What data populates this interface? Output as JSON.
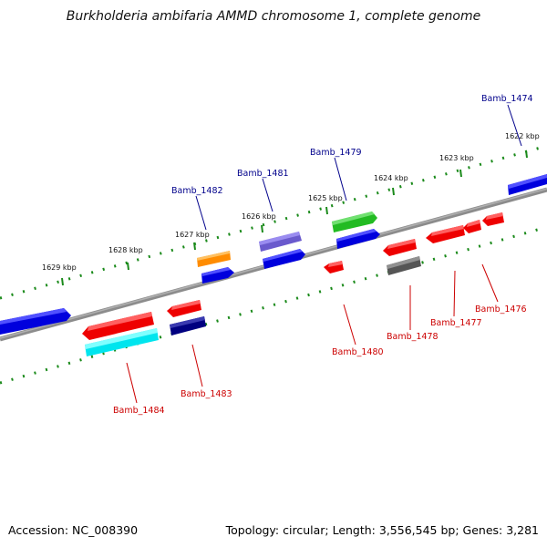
{
  "title": "Burkholderia ambifaria AMMD chromosome 1, complete genome",
  "footer": {
    "accession": "Accession: NC_008390",
    "topology": "Topology: circular; Length: 3,556,545 bp; Genes: 3,281"
  },
  "colors": {
    "backbone": "#808080",
    "tick_track": "#1a8a1a",
    "label_forward": "#00008b",
    "label_reverse": "#cc0000"
  },
  "kbp_labels": [
    "1629 kbp",
    "1628 kbp",
    "1627 kbp",
    "1626 kbp",
    "1625 kbp",
    "1624 kbp",
    "1623 kbp",
    "1622 kbp"
  ],
  "gene_labels": {
    "forward": [
      "Bamb_1482",
      "Bamb_1481",
      "Bamb_1479",
      "Bamb_1474"
    ],
    "reverse": [
      "Bamb_1484",
      "Bamb_1483",
      "Bamb_1480",
      "Bamb_1478",
      "Bamb_1477",
      "Bamb_1476"
    ]
  }
}
